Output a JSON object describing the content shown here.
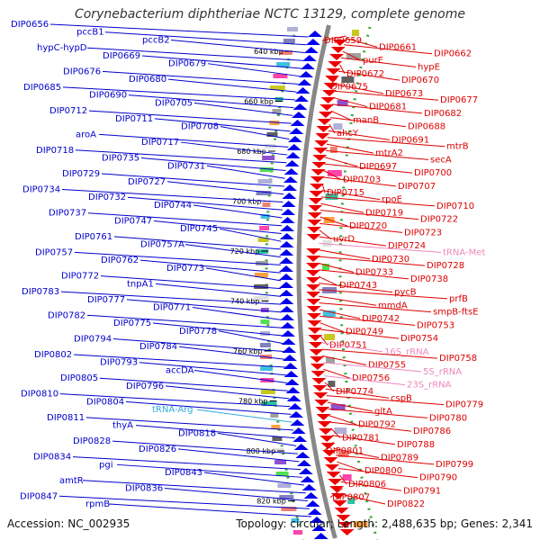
{
  "title": "Corynebacterium diphtheriae NCTC 13129, complete genome",
  "footer": {
    "accession": "Accession: NC_002935",
    "summary": "Topology: circular; Length: 2,488,635 bp; Genes: 2,341"
  },
  "colors": {
    "reverse_label": "#0000cc",
    "forward_label": "#dd0000",
    "rna_label": "#ee88bb",
    "trna_arg_label": "#33aadd",
    "reverse_arrow": "#0000ee",
    "forward_arrow": "#ee0000",
    "backbone": "#888888",
    "tick_dot": "#33aa33"
  },
  "ticks": [
    "640 kbp",
    "660 kbp",
    "680 kbp",
    "700 kbp",
    "720 kbp",
    "740 kbp",
    "760 kbp",
    "780 kbp",
    "800 kbp",
    "820 kbp"
  ],
  "labels_left": [
    "DIP0656",
    "pccB1",
    "pccB2",
    "hypC-hypD",
    "DIP0669",
    "DIP0679",
    "DIP0676",
    "DIP0680",
    "DIP0685",
    "DIP0690",
    "DIP0705",
    "DIP0712",
    "DIP0711",
    "DIP0708",
    "aroA",
    "DIP0717",
    "DIP0718",
    "DIP0735",
    "DIP0731",
    "DIP0729",
    "DIP0727",
    "DIP0734",
    "DIP0732",
    "DIP0744",
    "DIP0737",
    "DIP0747",
    "DIP0745",
    "DIP0761",
    "DIP0757A",
    "DIP0757",
    "DIP0762",
    "DIP0773",
    "DIP0772",
    "tnpA1",
    "DIP0783",
    "DIP0777",
    "DIP0771",
    "DIP0782",
    "DIP0775",
    "DIP0778",
    "DIP0794",
    "DIP0784",
    "DIP0802",
    "DIP0793",
    "accDA",
    "DIP0805",
    "DIP0796",
    "DIP0810",
    "DIP0804",
    "tRNA-Arg",
    "DIP0811",
    "thyA",
    "DIP0818",
    "DIP0828",
    "DIP0826",
    "DIP0834",
    "pgi",
    "DIP0843",
    "amtR",
    "DIP0836",
    "DIP0847",
    "rpmB"
  ],
  "labels_right": [
    "DIP0659",
    "DIP0661",
    "DIP0662",
    "purE",
    "hypE",
    "DIP0672",
    "DIP0670",
    "DIP0675",
    "DIP0673",
    "DIP0677",
    "DIP0681",
    "DIP0682",
    "manB",
    "DIP0688",
    "ahcY",
    "DIP0691",
    "mtrB",
    "mtrA2",
    "secA",
    "DIP0697",
    "DIP0700",
    "DIP0703",
    "DIP0707",
    "DIP0715",
    "rpoE",
    "DIP0710",
    "DIP0719",
    "DIP0722",
    "DIP0720",
    "DIP0723",
    "uvrD",
    "DIP0724",
    "tRNA-Met",
    "DIP0730",
    "DIP0728",
    "DIP0733",
    "DIP0738",
    "DIP0743",
    "pycB",
    "prfB",
    "mmdA",
    "smpB-ftsE",
    "DIP0742",
    "DIP0753",
    "DIP0749",
    "DIP0754",
    "DIP0751",
    "16S_rRNA",
    "DIP0758",
    "DIP0755",
    "5S_rRNA",
    "DIP0756",
    "23S_rRNA",
    "DIP0774",
    "cspB",
    "DIP0779",
    "gltA",
    "DIP0780",
    "DIP0792",
    "DIP0786",
    "DIP0781",
    "DIP0788",
    "DIP0801",
    "DIP0789",
    "DIP0799",
    "DIP0800",
    "DIP0790",
    "DIP0806",
    "DIP0791",
    "DIP0807",
    "DIP0822"
  ]
}
